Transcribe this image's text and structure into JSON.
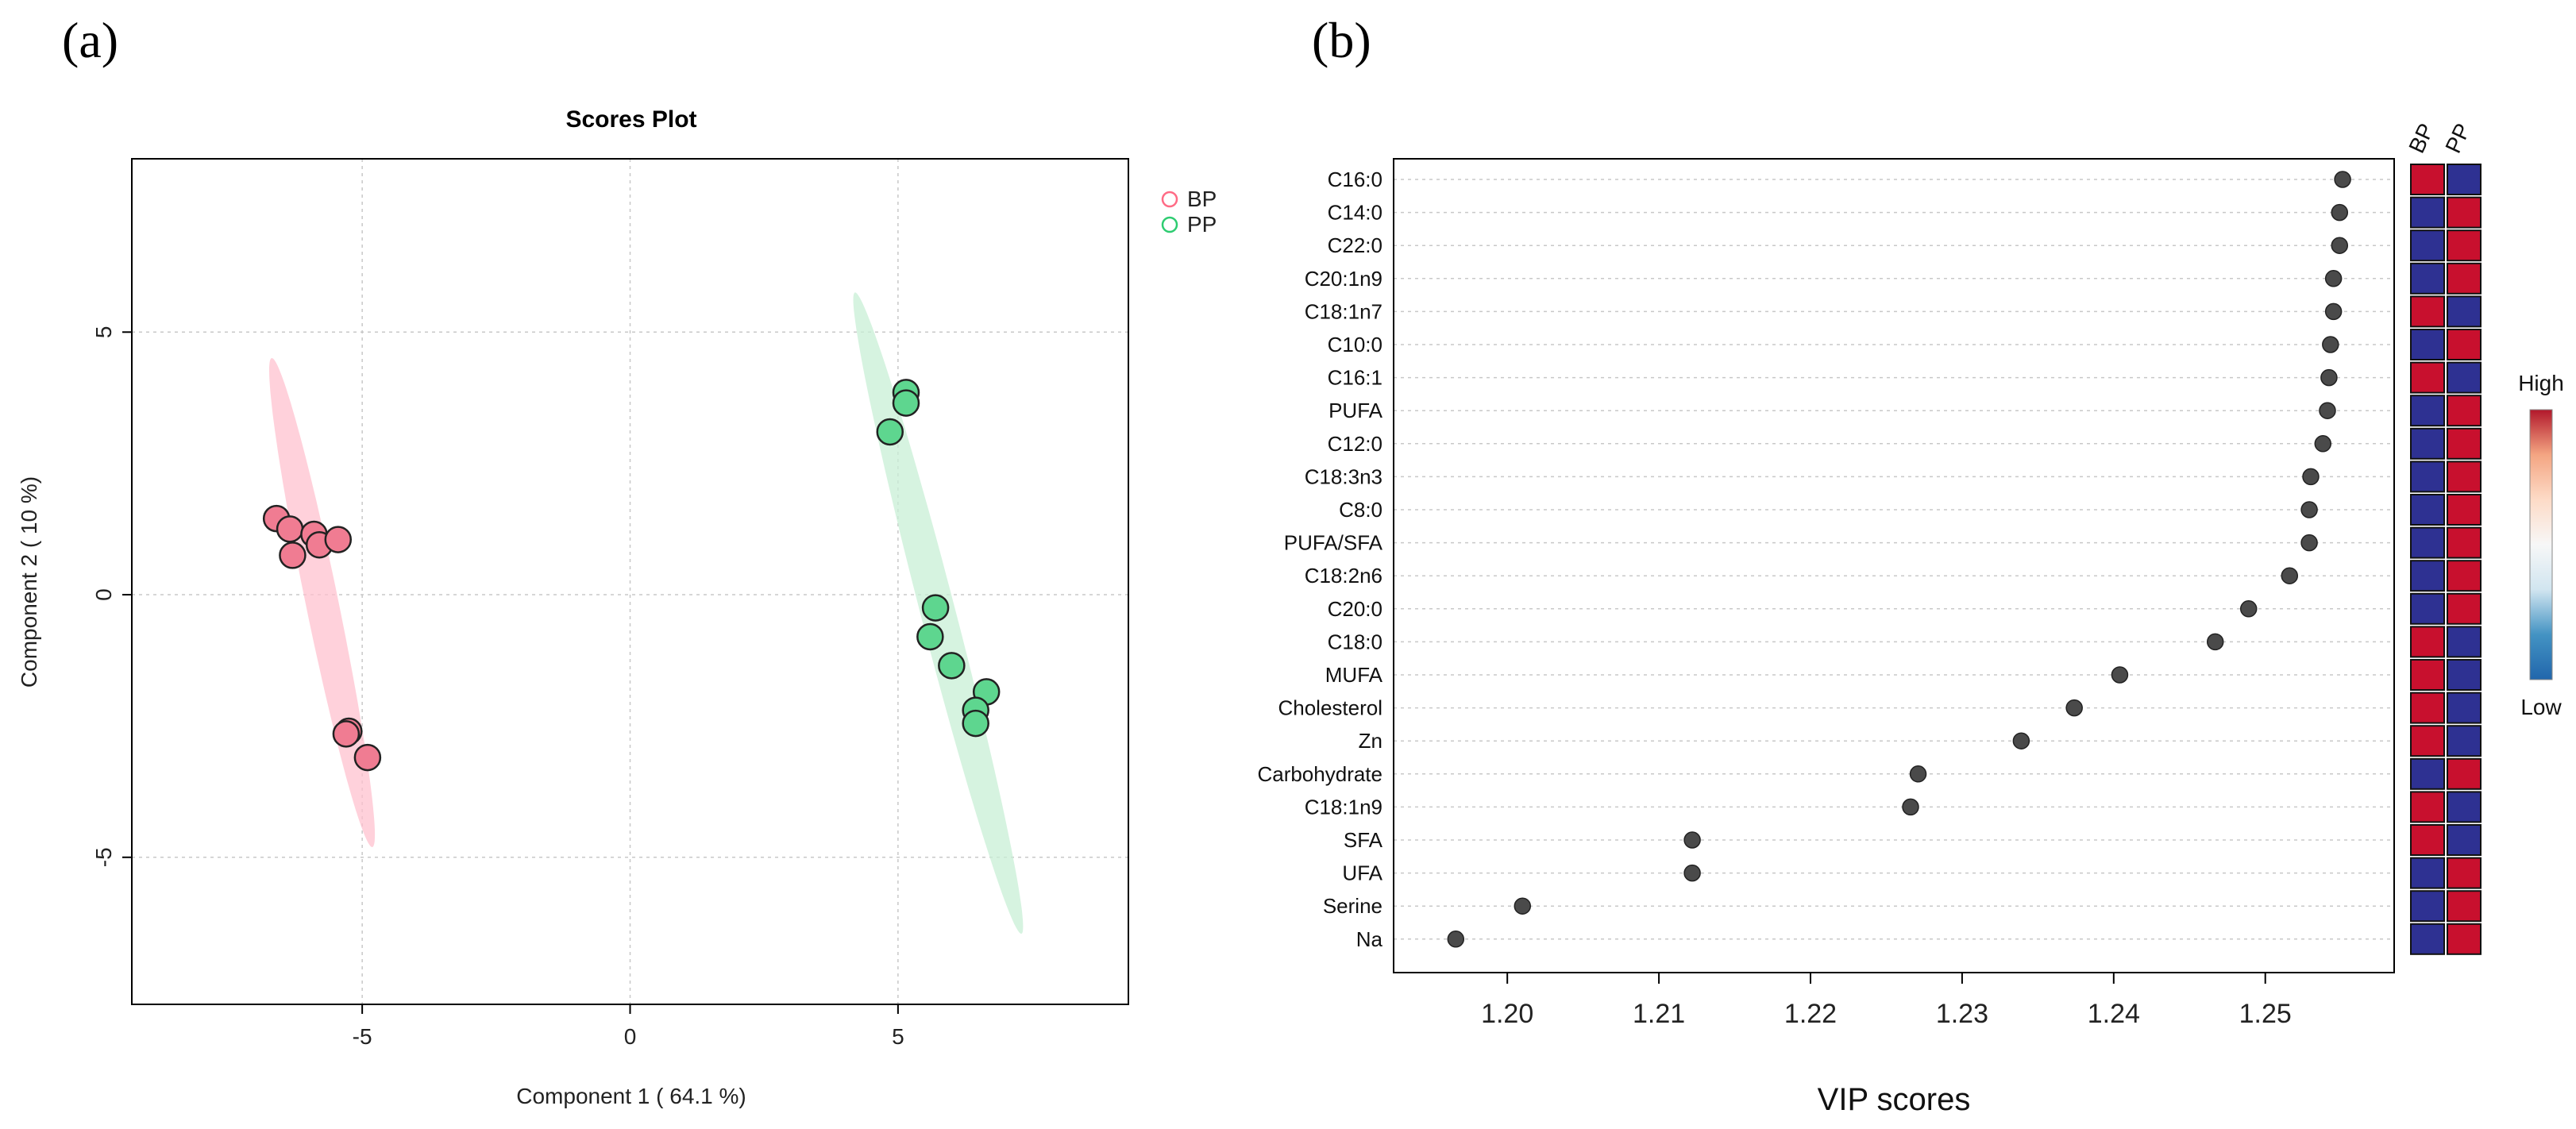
{
  "panels": {
    "a": "(a)",
    "b": "(b)"
  },
  "chart_data": [
    {
      "type": "scatter",
      "title": "Scores Plot",
      "xlabel": "Component 1 ( 64.1 %)",
      "ylabel": "Component 2 ( 10 %)",
      "xlim": [
        -9.3,
        9.3
      ],
      "ylim": [
        -7.8,
        8.3
      ],
      "xticks": [
        -5,
        0,
        5
      ],
      "yticks": [
        -5,
        0,
        5
      ],
      "xtick_labels": [
        "-5",
        "0",
        "5"
      ],
      "ytick_labels": [
        "-5",
        "0",
        "5"
      ],
      "grid": true,
      "legend": [
        {
          "name": "BP",
          "color": "#ff6b85"
        },
        {
          "name": "PP",
          "color": "#2ecc71"
        }
      ],
      "series": [
        {
          "name": "BP",
          "color": "#f07c92",
          "ellipse_color": "#ffc2cf",
          "ellipse": {
            "cx": -5.75,
            "cy": -0.15,
            "semi_major": 4.75,
            "semi_minor": 1.22
          },
          "points": [
            {
              "x": -6.6,
              "y": 1.45
            },
            {
              "x": -6.35,
              "y": 1.25
            },
            {
              "x": -5.9,
              "y": 1.15
            },
            {
              "x": -5.8,
              "y": 0.95
            },
            {
              "x": -5.45,
              "y": 1.05
            },
            {
              "x": -6.3,
              "y": 0.75
            },
            {
              "x": -5.25,
              "y": -2.6
            },
            {
              "x": -5.3,
              "y": -2.65
            },
            {
              "x": -4.9,
              "y": -3.1
            }
          ]
        },
        {
          "name": "PP",
          "color": "#5ed68f",
          "ellipse_color": "#c8efd5",
          "ellipse": {
            "cx": 5.75,
            "cy": -0.35,
            "semi_major": 6.3,
            "semi_minor": 1.3
          },
          "points": [
            {
              "x": 5.15,
              "y": 3.85
            },
            {
              "x": 5.15,
              "y": 3.65
            },
            {
              "x": 4.85,
              "y": 3.1
            },
            {
              "x": 5.7,
              "y": -0.25
            },
            {
              "x": 5.6,
              "y": -0.8
            },
            {
              "x": 6.0,
              "y": -1.35
            },
            {
              "x": 6.65,
              "y": -1.85
            },
            {
              "x": 6.45,
              "y": -2.2
            },
            {
              "x": 6.45,
              "y": -2.45
            }
          ]
        }
      ]
    },
    {
      "type": "scatter",
      "title": "",
      "xlabel": "VIP scores",
      "ylabel": "",
      "xlim": [
        1.1925,
        1.2585
      ],
      "xticks": [
        1.2,
        1.21,
        1.22,
        1.23,
        1.24,
        1.25
      ],
      "xtick_labels": [
        "1.20",
        "1.21",
        "1.22",
        "1.23",
        "1.24",
        "1.25"
      ],
      "grid": true,
      "features": [
        "C16:0",
        "C14:0",
        "C22:0",
        "C20:1n9",
        "C18:1n7",
        "C10:0",
        "C16:1",
        "PUFA",
        "C12:0",
        "C18:3n3",
        "C8:0",
        "PUFA/SFA",
        "C18:2n6",
        "C20:0",
        "C18:0",
        "MUFA",
        "Cholesterol",
        "Zn",
        "Carbohydrate",
        "C18:1n9",
        "SFA",
        "UFA",
        "Serine",
        "Na"
      ],
      "vip_scores": [
        1.2551,
        1.2549,
        1.2549,
        1.2545,
        1.2545,
        1.2543,
        1.2542,
        1.2541,
        1.2538,
        1.253,
        1.2529,
        1.2529,
        1.2516,
        1.2489,
        1.2467,
        1.2404,
        1.2374,
        1.2339,
        1.2271,
        1.2266,
        1.2122,
        1.2122,
        1.201,
        1.1966
      ],
      "heatmap": {
        "groups": [
          "BP",
          "PP"
        ],
        "high_color": "#c8102e",
        "low_color": "#2e3192",
        "levels": [
          [
            "High",
            "Low"
          ],
          [
            "Low",
            "High"
          ],
          [
            "Low",
            "High"
          ],
          [
            "Low",
            "High"
          ],
          [
            "High",
            "Low"
          ],
          [
            "Low",
            "High"
          ],
          [
            "High",
            "Low"
          ],
          [
            "Low",
            "High"
          ],
          [
            "Low",
            "High"
          ],
          [
            "Low",
            "High"
          ],
          [
            "Low",
            "High"
          ],
          [
            "Low",
            "High"
          ],
          [
            "Low",
            "High"
          ],
          [
            "Low",
            "High"
          ],
          [
            "High",
            "Low"
          ],
          [
            "High",
            "Low"
          ],
          [
            "High",
            "Low"
          ],
          [
            "High",
            "Low"
          ],
          [
            "Low",
            "High"
          ],
          [
            "High",
            "Low"
          ],
          [
            "High",
            "Low"
          ],
          [
            "Low",
            "High"
          ],
          [
            "Low",
            "High"
          ],
          [
            "Low",
            "High"
          ]
        ]
      },
      "color_scale": {
        "high_label": "High",
        "low_label": "Low",
        "stops": [
          "#b2182b",
          "#f4a582",
          "#fddbc7",
          "#f7f7f7",
          "#d1e5f0",
          "#4393c3",
          "#2166ac"
        ]
      }
    }
  ]
}
